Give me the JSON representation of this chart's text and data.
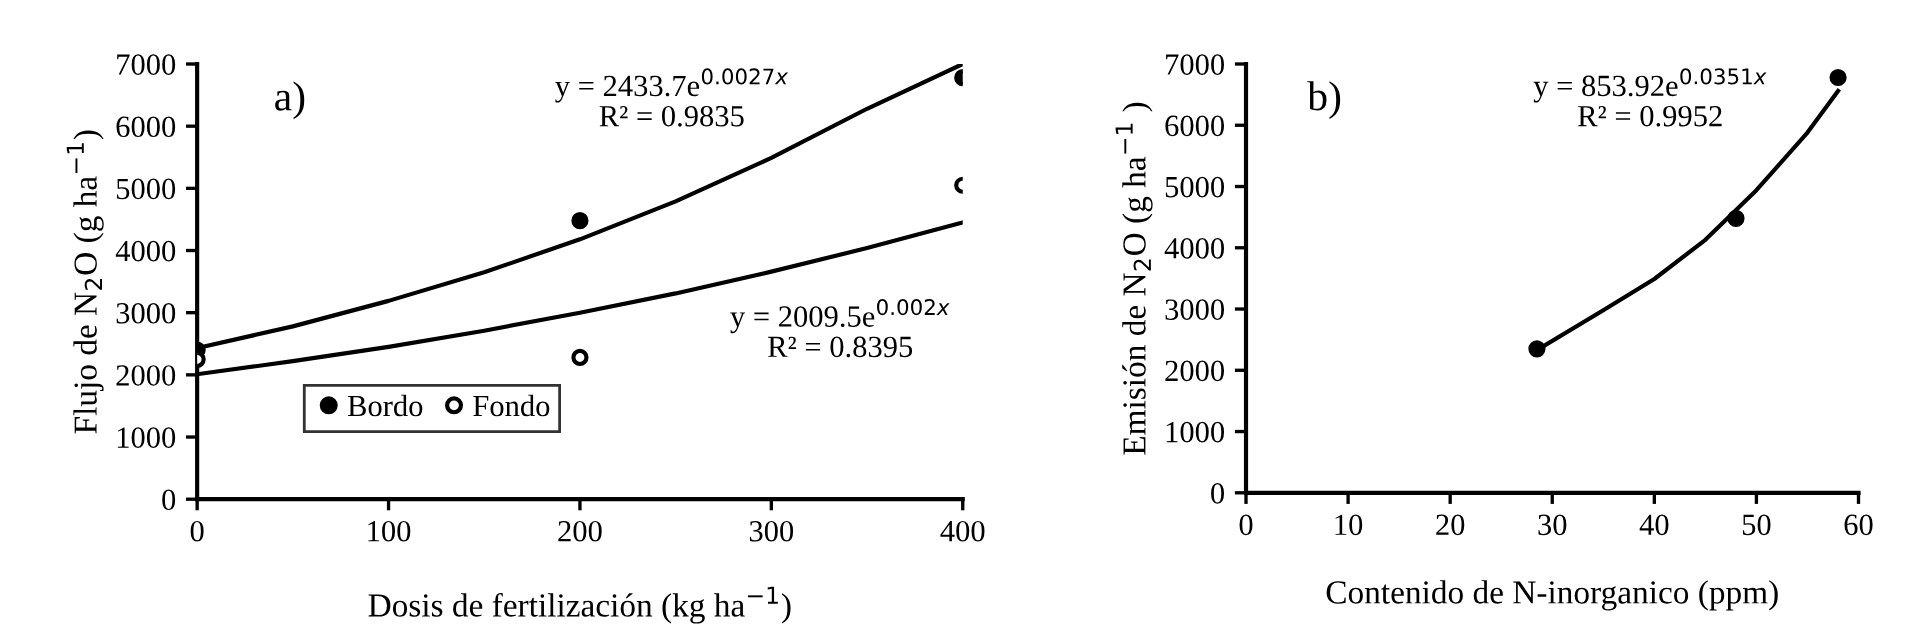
{
  "chart_data": [
    {
      "type": "scatter",
      "title": "a)",
      "xlabel": "Dosis de fertilización (kg ha$^{−1}$)",
      "ylabel": "Flujo de N$_{2}$O (g ha$^{−1}$)",
      "xlim": [
        0,
        400
      ],
      "xticks": [
        0,
        100,
        200,
        300,
        400
      ],
      "ylim": [
        0,
        7000
      ],
      "yticks": [
        0,
        1000,
        2000,
        3000,
        4000,
        5000,
        6000,
        7000
      ],
      "grid": false,
      "legend": "bottom left",
      "annotations": [
        "y = 2433.7e$^{0.0027x}$\nR² = 0.9835",
        "y = 2009.5e$^{0.002x}$\nR² = 0.8395"
      ],
      "series": [
        {
          "name": "Bordo",
          "color": "#000000",
          "marker": "circle",
          "x": [
            0,
            200,
            400
          ],
          "values": [
            2400,
            4480,
            6780
          ]
        },
        {
          "name": "Fondo",
          "color": "#ffffff",
          "marker": "circle",
          "x": [
            0,
            200,
            400
          ],
          "values": [
            2250,
            2280,
            5050
          ]
        },
        {
          "type": "line",
          "color": "#000000",
          "x": [
            0,
            50,
            100,
            150,
            200,
            250,
            300,
            350,
            400
          ],
          "values": [
            2430,
            2780,
            3190,
            3650,
            4180,
            4790,
            5490,
            6280,
            7000
          ]
        },
        {
          "type": "line",
          "color": "#000000",
          "x": [
            0,
            50,
            100,
            150,
            200,
            250,
            300,
            350,
            400
          ],
          "values": [
            2010,
            2220,
            2450,
            2710,
            3000,
            3310,
            3660,
            4040,
            4450
          ]
        }
      ]
    },
    {
      "type": "scatter",
      "title": "b)",
      "xlabel": "Contenido de N-inorganico (ppm)",
      "ylabel": "Emisión de N$_{2}$O (g ha$^{−1}$ )",
      "xlim": [
        0,
        60
      ],
      "xticks": [
        0,
        10,
        20,
        30,
        40,
        50,
        60
      ],
      "ylim": [
        0,
        7000
      ],
      "yticks": [
        0,
        1000,
        2000,
        3000,
        4000,
        5000,
        6000,
        7000
      ],
      "grid": false,
      "annotations": [
        "y = 853.92e$^{0.0351x}$\nR² = 0.9952"
      ],
      "series": [
        {
          "color": "#000000",
          "marker": "circle",
          "x": [
            28.5,
            48,
            58
          ],
          "values": [
            2350,
            4480,
            6780
          ]
        },
        {
          "type": "line",
          "color": "#000000",
          "x": [
            28.5,
            35,
            40,
            45,
            50,
            55,
            58
          ],
          "values": [
            2330,
            2980,
            3490,
            4130,
            4940,
            5880,
            6560
          ]
        }
      ]
    }
  ]
}
